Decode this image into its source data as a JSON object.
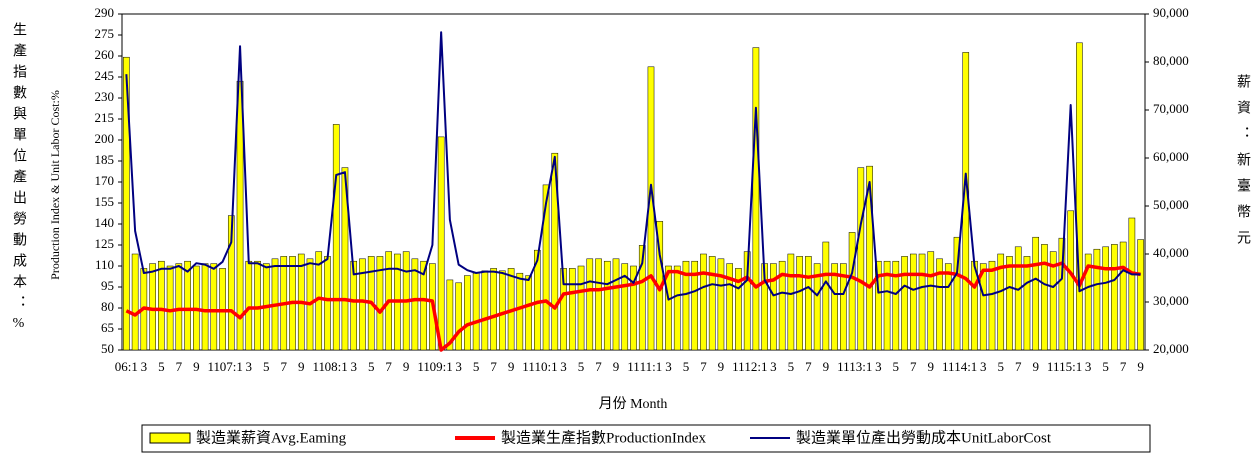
{
  "chart_data": {
    "type": "combo",
    "y_title": "生產指數與單位產出勞動成本：%",
    "y_title_en": "Production Index & Unit Labor Cost:%",
    "y2_title": "薪資：新臺幣元",
    "x_title": "月份 Month",
    "categories": [
      "06:1",
      null,
      "3",
      null,
      "5",
      null,
      "7",
      null,
      "9",
      null,
      "11",
      null,
      "07:1",
      null,
      "3",
      null,
      "5",
      null,
      "7",
      null,
      "9",
      null,
      "11",
      null,
      "08:1",
      null,
      "3",
      null,
      "5",
      null,
      "7",
      null,
      "9",
      null,
      "11",
      null,
      "09:1",
      null,
      "3",
      null,
      "5",
      null,
      "7",
      null,
      "9",
      null,
      "11",
      null,
      "10:1",
      null,
      "3",
      null,
      "5",
      null,
      "7",
      null,
      "9",
      null,
      "11",
      null,
      "11:1",
      null,
      "3",
      null,
      "5",
      null,
      "7",
      null,
      "9",
      null,
      "11",
      null,
      "12:1",
      null,
      "3",
      null,
      "5",
      null,
      "7",
      null,
      "9",
      null,
      "11",
      null,
      "13:1",
      null,
      "3",
      null,
      "5",
      null,
      "7",
      null,
      "9",
      null,
      "11",
      null,
      "14:1",
      null,
      "3",
      null,
      "5",
      null,
      "7",
      null,
      "9",
      null,
      "11",
      null,
      "15:1",
      null,
      "3",
      null,
      "5",
      null,
      "7",
      null,
      "9"
    ],
    "series": [
      {
        "name": "製造業薪資Avg.Eaming",
        "type": "bar",
        "axis": "y2",
        "color": "#ffff00",
        "values": [
          81000,
          40000,
          37000,
          38000,
          38500,
          37500,
          38000,
          38500,
          37500,
          38000,
          38000,
          37000,
          48000,
          76000,
          38500,
          38500,
          38000,
          39000,
          39500,
          39500,
          40000,
          39000,
          40500,
          39500,
          67000,
          58000,
          38500,
          39000,
          39500,
          39500,
          40500,
          40000,
          40500,
          39000,
          38500,
          38000,
          64400,
          34600,
          34000,
          35500,
          36000,
          36500,
          37000,
          36500,
          37000,
          36000,
          35500,
          40800,
          54400,
          61000,
          37000,
          37000,
          37500,
          39000,
          39000,
          38500,
          39000,
          38000,
          37500,
          41800,
          79000,
          46800,
          37500,
          37500,
          38500,
          38500,
          40000,
          39500,
          39000,
          38000,
          37000,
          40500,
          83000,
          38000,
          38000,
          38500,
          40000,
          39500,
          39500,
          38000,
          42500,
          38000,
          38000,
          44500,
          58000,
          58300,
          38500,
          38500,
          38500,
          39500,
          40000,
          40000,
          40500,
          39000,
          38000,
          43500,
          82000,
          38500,
          38000,
          38500,
          40000,
          39500,
          41500,
          39500,
          43500,
          42000,
          40500,
          43300,
          49000,
          84000,
          40000,
          41000,
          41500,
          42000,
          42500,
          47500,
          43000
        ]
      },
      {
        "name": "製造業生產指數ProductionIndex",
        "type": "line",
        "axis": "y",
        "color": "#ff0000",
        "values": [
          78,
          75,
          80,
          79,
          79,
          78,
          79,
          79,
          79,
          78,
          78,
          78,
          78,
          73,
          80,
          80,
          81,
          82,
          83,
          84,
          84,
          83,
          87,
          86,
          86,
          86,
          85,
          85,
          84,
          77,
          85,
          85,
          85,
          86,
          86,
          85,
          50,
          55,
          63,
          68,
          70,
          72,
          74,
          76,
          78,
          80,
          82,
          84,
          85,
          80,
          90,
          91,
          92,
          93,
          93,
          94,
          95,
          96,
          97,
          99,
          103,
          93,
          106,
          106,
          104,
          104,
          105,
          104,
          103,
          101,
          99,
          102,
          95,
          99,
          100,
          104,
          103,
          103,
          102,
          103,
          104,
          104,
          103,
          102,
          99,
          95,
          103,
          104,
          103,
          104,
          104,
          104,
          103,
          105,
          105,
          104,
          101,
          95,
          107,
          107,
          109,
          110,
          110,
          110,
          111,
          112,
          110,
          112,
          105,
          96,
          110,
          109,
          108,
          108,
          109,
          105,
          104
        ]
      },
      {
        "name": "製造業單位產出勞動成本UnitLaborCost",
        "type": "line",
        "axis": "y",
        "color": "#000080",
        "values": [
          247,
          135,
          105,
          106,
          108,
          108,
          110,
          106,
          112,
          111,
          108,
          113,
          127,
          267,
          112,
          112,
          109,
          110,
          110,
          110,
          110,
          112,
          111,
          115,
          175,
          177,
          104,
          105,
          106,
          107,
          108,
          108,
          106,
          107,
          104,
          125,
          277,
          143,
          111,
          107,
          105,
          106,
          106,
          105,
          103,
          101,
          100,
          114,
          155,
          188,
          97,
          97,
          97,
          99,
          98,
          97,
          100,
          103,
          98,
          112,
          168,
          118,
          86,
          89,
          90,
          92,
          95,
          97,
          96,
          97,
          94,
          100,
          223,
          100,
          89,
          91,
          90,
          92,
          95,
          89,
          99,
          90,
          90,
          105,
          140,
          170,
          91,
          92,
          90,
          96,
          93,
          95,
          96,
          95,
          95,
          105,
          176,
          110,
          89,
          90,
          92,
          95,
          93,
          98,
          101,
          97,
          95,
          101,
          225,
          92,
          95,
          97,
          98,
          100,
          107,
          104,
          104
        ]
      }
    ],
    "ylim": [
      50,
      290
    ],
    "yticks": [
      50,
      65,
      80,
      95,
      110,
      125,
      140,
      155,
      170,
      185,
      200,
      215,
      230,
      245,
      260,
      275,
      290
    ],
    "y2lim": [
      20000,
      90000
    ],
    "y2ticks": [
      {
        "value": 20000,
        "label": "20,000"
      },
      {
        "value": 30000,
        "label": "30,000"
      },
      {
        "value": 40000,
        "label": "40,000"
      },
      {
        "value": 50000,
        "label": "50,000"
      },
      {
        "value": 60000,
        "label": "60,000"
      },
      {
        "value": 70000,
        "label": "70,000"
      },
      {
        "value": 80000,
        "label": "80,000"
      },
      {
        "value": 90000,
        "label": "90,000"
      }
    ],
    "legend": "bottom"
  }
}
